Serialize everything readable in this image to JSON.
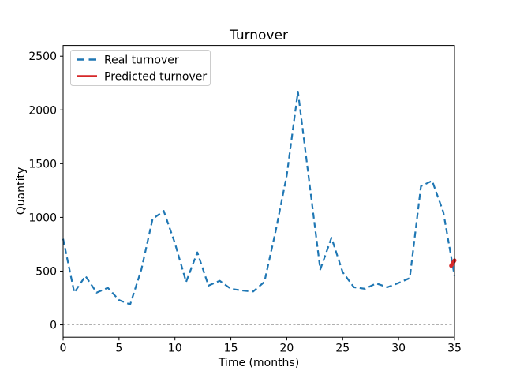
{
  "figure": {
    "title": "Turnover",
    "xlabel": "Time (months)",
    "ylabel": "Quantity"
  },
  "legend": [
    {
      "label": "Real turnover",
      "color": "#1f77b4",
      "style": "dashed"
    },
    {
      "label": "Predicted turnover",
      "color": "#d62728",
      "style": "solid"
    }
  ],
  "chart_data": {
    "type": "line",
    "title": "Turnover",
    "xlabel": "Time (months)",
    "ylabel": "Quantity",
    "xlim": [
      0,
      35
    ],
    "ylim": [
      -115,
      2600
    ],
    "xticks": [
      0,
      5,
      10,
      15,
      20,
      25,
      30,
      35
    ],
    "yticks": [
      0,
      500,
      1000,
      1500,
      2000,
      2500
    ],
    "grid": "none except dashed gray horizontal line at y=0",
    "legend_position": "upper left",
    "zero_line_color": "#b0b0b0",
    "series": [
      {
        "name": "Real turnover",
        "color": "#1f77b4",
        "line_style": "dashed",
        "line_width": 2.2,
        "x": [
          0,
          1,
          2,
          3,
          4,
          5,
          6,
          7,
          8,
          9,
          10,
          11,
          12,
          13,
          14,
          15,
          16,
          17,
          18,
          19,
          20,
          21,
          22,
          23,
          24,
          25,
          26,
          27,
          28,
          29,
          30,
          31,
          32,
          33,
          34,
          35
        ],
        "y": [
          800,
          300,
          455,
          300,
          345,
          230,
          190,
          515,
          985,
          1060,
          760,
          400,
          675,
          365,
          410,
          335,
          320,
          310,
          400,
          870,
          1390,
          2170,
          1340,
          515,
          810,
          490,
          350,
          335,
          385,
          350,
          390,
          435,
          1290,
          1340,
          1050,
          455
        ]
      },
      {
        "name": "Predicted turnover",
        "color": "#d62728",
        "line_style": "solid",
        "line_width": 5,
        "x": [
          34.7,
          35
        ],
        "y": [
          550,
          600
        ]
      }
    ]
  }
}
